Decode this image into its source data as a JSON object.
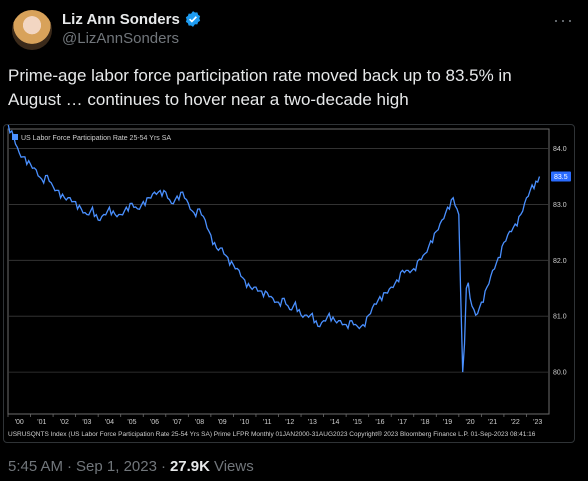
{
  "author": {
    "name": "Liz Ann Sonders",
    "handle": "@LizAnnSonders",
    "verified_icon": "verified-badge-icon",
    "avatar_icon": "profile-avatar"
  },
  "more_icon": "more-options-icon",
  "tweet": {
    "text": "Prime-age labor force participation rate moved back up to 83.5% in August … continues to hover near a two-decade high"
  },
  "meta": {
    "time": "5:45 AM",
    "separator": "·",
    "date": "Sep 1, 2023",
    "views_count": "27.9K",
    "views_label": "Views"
  },
  "colors": {
    "accent": "#1d9bf0",
    "series": "#4a90ff",
    "last_value_tag": "#2a6cff"
  },
  "chart_data": {
    "type": "line",
    "legend": "US Labor Force Participation Rate 25-54 Yrs SA",
    "x_tick_labels": [
      "'00",
      "'01",
      "'02",
      "'03",
      "'04",
      "'05",
      "'06",
      "'07",
      "'08",
      "'09",
      "'10",
      "'11",
      "'12",
      "'13",
      "'14",
      "'15",
      "'16",
      "'17",
      "'18",
      "'19",
      "'20",
      "'21",
      "'22",
      "'23"
    ],
    "y_ticks": [
      80.0,
      81.0,
      82.0,
      83.0,
      84.0
    ],
    "y_tick_labels": [
      "80.0",
      "81.0",
      "82.0",
      "83.0",
      "84.0"
    ],
    "ylim": [
      79.25,
      84.35
    ],
    "xlim": [
      2000.0,
      2024.0
    ],
    "last_value_label": "83.5",
    "footer": "USRUSQNTS Index (US Labor Force Participation Rate 25-54 Yrs SA) Prime LFPR  Monthly 01JAN2000-31AUG2023   Copyright® 2023 Bloomberg Finance L.P.    01-Sep-2023 08:41:16",
    "series": [
      {
        "x": [
          2000.0,
          2000.25,
          2000.5,
          2000.75,
          2001.0,
          2001.25,
          2001.5,
          2001.75,
          2002.0,
          2002.25,
          2002.5,
          2002.75,
          2003.0,
          2003.25,
          2003.5,
          2003.75,
          2004.0,
          2004.25,
          2004.5,
          2004.75,
          2005.0,
          2005.25,
          2005.5,
          2005.75,
          2006.0,
          2006.25,
          2006.5,
          2006.75,
          2007.0,
          2007.25,
          2007.5,
          2007.75,
          2008.0,
          2008.25,
          2008.5,
          2008.75,
          2009.0,
          2009.25,
          2009.5,
          2009.75,
          2010.0,
          2010.25,
          2010.5,
          2010.75,
          2011.0,
          2011.25,
          2011.5,
          2011.75,
          2012.0,
          2012.25,
          2012.5,
          2012.75,
          2013.0,
          2013.25,
          2013.5,
          2013.75,
          2014.0,
          2014.25,
          2014.5,
          2014.75,
          2015.0,
          2015.25,
          2015.5,
          2015.75,
          2016.0,
          2016.25,
          2016.5,
          2016.75,
          2017.0,
          2017.25,
          2017.5,
          2017.75,
          2018.0,
          2018.25,
          2018.5,
          2018.75,
          2019.0,
          2019.25,
          2019.5,
          2019.75,
          2020.0,
          2020.17,
          2020.25,
          2020.33,
          2020.42,
          2020.5,
          2020.75,
          2021.0,
          2021.25,
          2021.5,
          2021.75,
          2022.0,
          2022.25,
          2022.5,
          2022.75,
          2023.0,
          2023.25,
          2023.5,
          2023.58
        ],
        "values": [
          84.4,
          84.2,
          83.9,
          83.8,
          83.7,
          83.6,
          83.4,
          83.5,
          83.3,
          83.2,
          83.1,
          83.1,
          83.0,
          82.9,
          82.8,
          82.9,
          82.7,
          82.8,
          82.9,
          82.8,
          82.8,
          82.9,
          83.0,
          82.9,
          83.0,
          83.1,
          83.2,
          83.2,
          83.2,
          83.0,
          83.1,
          83.2,
          83.0,
          82.8,
          82.9,
          82.7,
          82.4,
          82.2,
          82.2,
          82.0,
          81.9,
          81.8,
          81.6,
          81.5,
          81.5,
          81.4,
          81.4,
          81.3,
          81.2,
          81.3,
          81.1,
          81.2,
          81.0,
          81.0,
          81.0,
          80.8,
          80.9,
          81.0,
          80.9,
          80.9,
          80.8,
          80.9,
          80.8,
          80.8,
          81.0,
          81.2,
          81.3,
          81.4,
          81.5,
          81.6,
          81.8,
          81.8,
          81.8,
          82.0,
          82.1,
          82.3,
          82.5,
          82.7,
          82.9,
          83.1,
          82.8,
          80.0,
          80.5,
          81.5,
          81.6,
          81.3,
          81.0,
          81.2,
          81.5,
          81.8,
          82.0,
          82.3,
          82.5,
          82.6,
          82.8,
          83.1,
          83.3,
          83.4,
          83.5
        ]
      }
    ]
  }
}
